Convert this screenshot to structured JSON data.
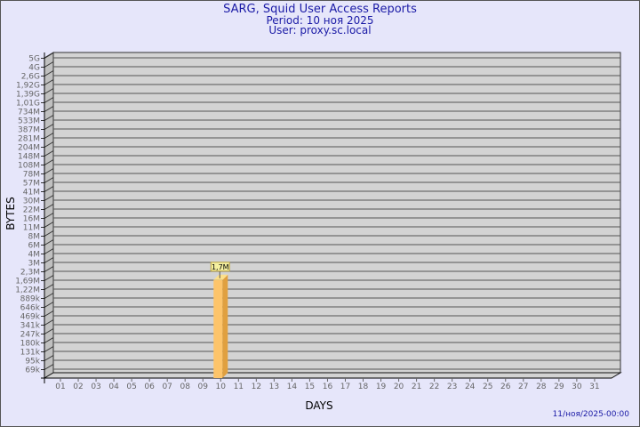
{
  "chart_data": {
    "type": "bar",
    "title": "SARG, Squid User Access Reports",
    "subtitle_period": "Period: 10 ноя 2025",
    "subtitle_user": "User: proxy.sc.local",
    "xlabel": "DAYS",
    "ylabel": "BYTES",
    "y_scale": "log",
    "y_ticks": [
      "5G",
      "4G",
      "2,6G",
      "1,92G",
      "1,39G",
      "1,01G",
      "734M",
      "533M",
      "387M",
      "281M",
      "204M",
      "148M",
      "108M",
      "78M",
      "57M",
      "41M",
      "30M",
      "22M",
      "16M",
      "11M",
      "8M",
      "6M",
      "4M",
      "3M",
      "2,3M",
      "1,69M",
      "1,22M",
      "889k",
      "646k",
      "469k",
      "341k",
      "247k",
      "180k",
      "131k",
      "95k",
      "69k"
    ],
    "y_tick_values": [
      5000000000,
      4000000000,
      2600000000,
      1920000000,
      1390000000,
      1010000000,
      734000000,
      533000000,
      387000000,
      281000000,
      204000000,
      148000000,
      108000000,
      78000000,
      57000000,
      41000000,
      30000000,
      22000000,
      16000000,
      11000000,
      8000000,
      6000000,
      4000000,
      3000000,
      2300000,
      1690000,
      1220000,
      889000,
      646000,
      469000,
      341000,
      247000,
      180000,
      131000,
      95000,
      69000
    ],
    "categories": [
      "01",
      "02",
      "03",
      "04",
      "05",
      "06",
      "07",
      "08",
      "09",
      "10",
      "11",
      "12",
      "13",
      "14",
      "15",
      "16",
      "17",
      "18",
      "19",
      "20",
      "21",
      "22",
      "23",
      "24",
      "25",
      "26",
      "27",
      "28",
      "29",
      "30",
      "31"
    ],
    "bars": [
      {
        "day": "10",
        "value": 1700000,
        "label": "1,7M"
      }
    ],
    "grid": true,
    "colors": {
      "bar_front": "#fdc46a",
      "bar_side": "#e0a040",
      "bar_top": "#fde08a",
      "plot_bg": "#d3d3d3",
      "label_bg": "#f5f0a0"
    }
  },
  "footer_date": "11/ноя/2025-00:00"
}
